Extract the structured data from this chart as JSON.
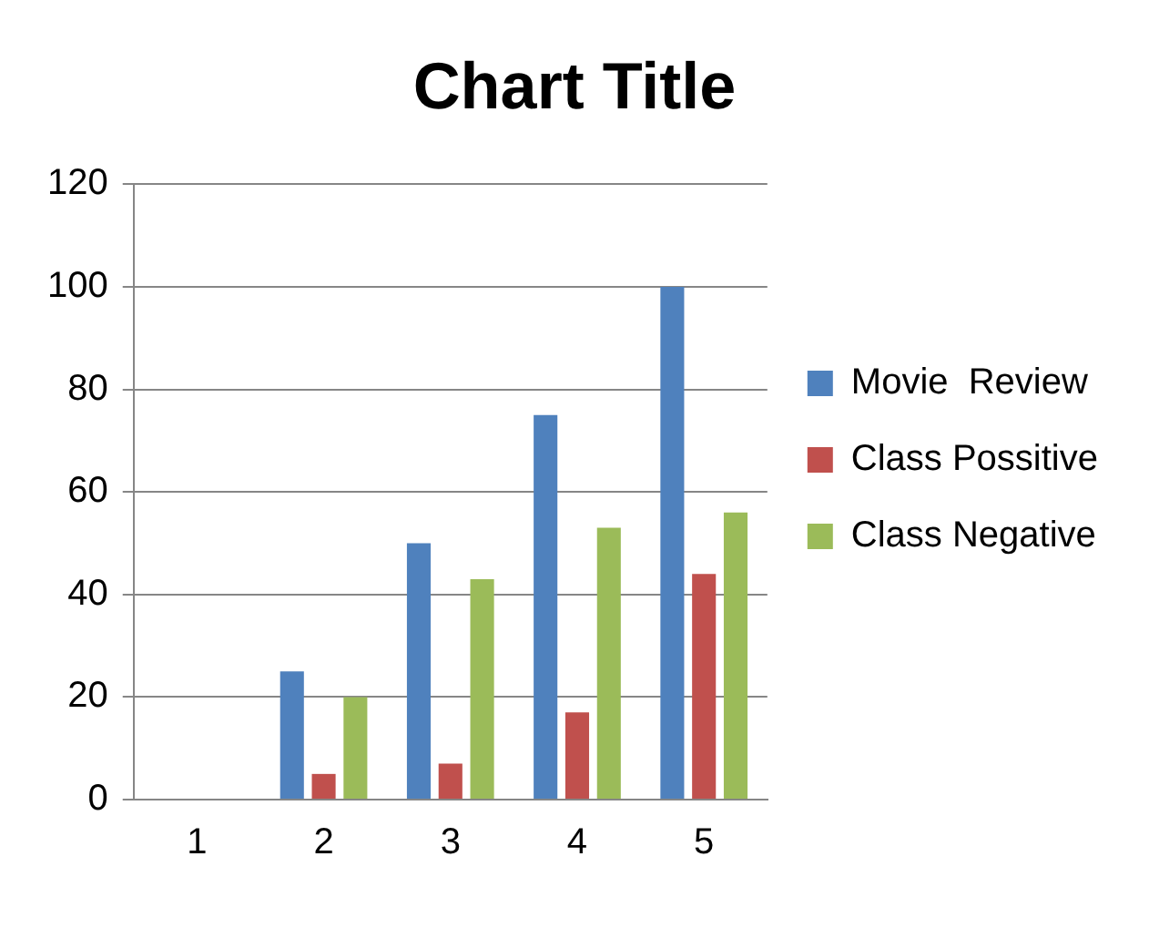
{
  "chart_data": {
    "type": "bar",
    "title": "Chart Title",
    "categories": [
      "1",
      "2",
      "3",
      "4",
      "5"
    ],
    "series": [
      {
        "name": "Movie  Review",
        "color": "#4f81bd",
        "values": [
          0,
          25,
          50,
          75,
          100
        ]
      },
      {
        "name": "Class Possitive",
        "color": "#c0504d",
        "values": [
          0,
          5,
          7,
          17,
          44
        ]
      },
      {
        "name": "Class Negative",
        "color": "#9bbb59",
        "values": [
          0,
          20,
          43,
          53,
          56
        ]
      }
    ],
    "ylim": [
      0,
      120
    ],
    "yticks": [
      0,
      20,
      40,
      60,
      80,
      100,
      120
    ],
    "grid": "y",
    "legend": "right"
  }
}
